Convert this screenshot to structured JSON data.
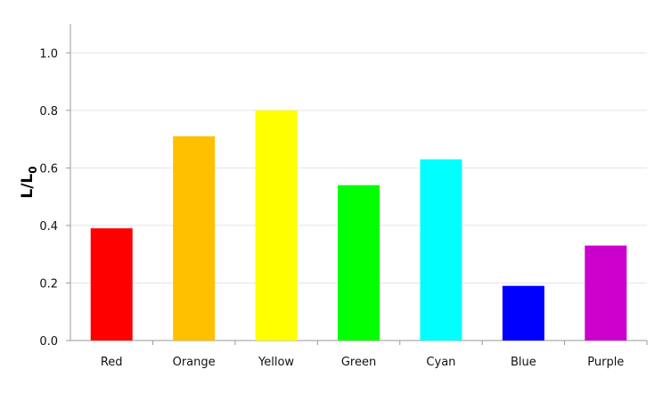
{
  "chart_data": {
    "type": "bar",
    "categories": [
      "Red",
      "Orange",
      "Yellow",
      "Green",
      "Cyan",
      "Blue",
      "Purple"
    ],
    "values": [
      0.39,
      0.71,
      0.8,
      0.54,
      0.63,
      0.19,
      0.33
    ],
    "colors": [
      "#ff0000",
      "#ffc000",
      "#ffff00",
      "#00ff00",
      "#00ffff",
      "#0000ff",
      "#cc00cc"
    ],
    "title": "",
    "xlabel": "",
    "ylabel": {
      "main": "L/L",
      "subscript": "0"
    },
    "ylim": [
      0,
      1.1
    ],
    "yticks": [
      0.0,
      0.2,
      0.4,
      0.6,
      0.8,
      1.0
    ],
    "ytick_labels": [
      "0.0",
      "0.2",
      "0.4",
      "0.6",
      "0.8",
      "1.0"
    ],
    "grid": true,
    "legend": "none"
  }
}
